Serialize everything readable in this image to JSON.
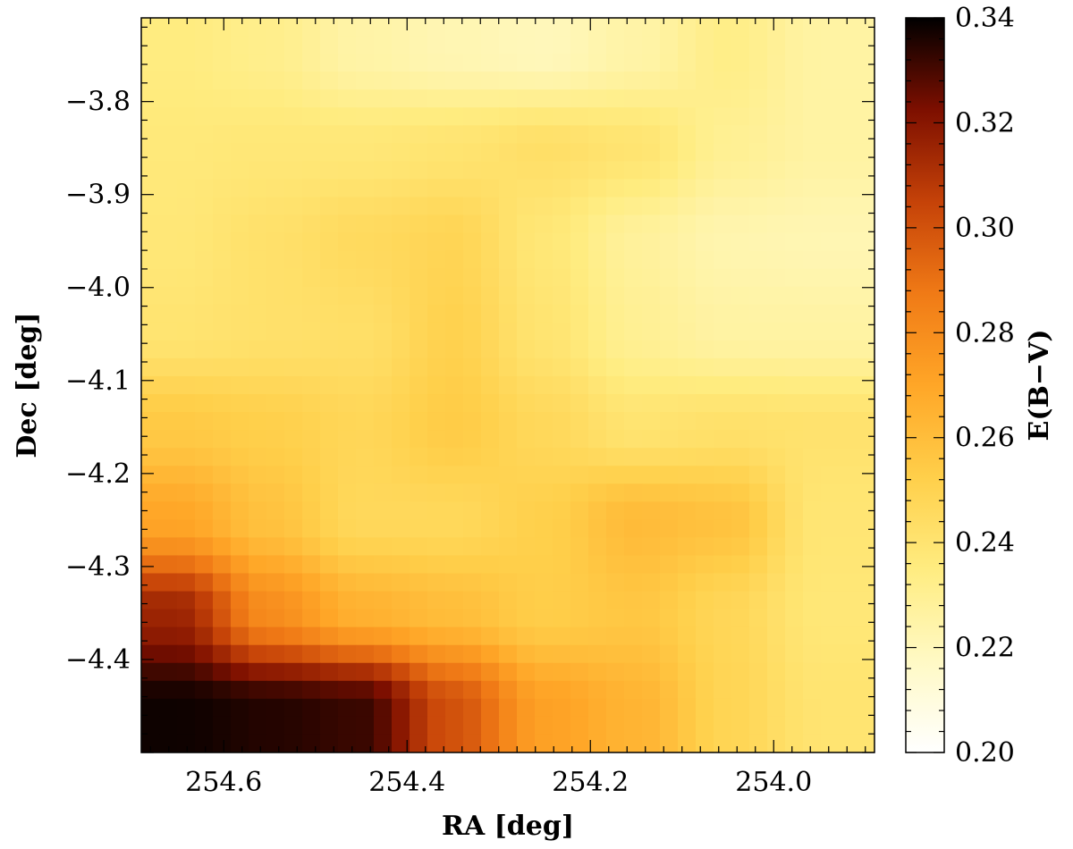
{
  "chart_data": {
    "type": "heatmap",
    "title": "",
    "xlabel": "RA [deg]",
    "ylabel": "Dec [deg]",
    "colorbar_label": "E(B−V)",
    "xlim": [
      254.69,
      253.89
    ],
    "ylim": [
      -4.5,
      -3.71
    ],
    "x_axis_reversed": true,
    "x_ticks": [
      254.6,
      254.4,
      254.2,
      254.0
    ],
    "x_tick_labels": [
      "254.6",
      "254.4",
      "254.2",
      "254.0"
    ],
    "y_ticks": [
      -3.8,
      -3.9,
      -4.0,
      -4.1,
      -4.2,
      -4.3,
      -4.4
    ],
    "y_tick_labels": [
      "−3.8",
      "−3.9",
      "−4.0",
      "−4.1",
      "−4.2",
      "−4.3",
      "−4.4"
    ],
    "colorbar_range": [
      0.2,
      0.34
    ],
    "colorbar_ticks": [
      0.2,
      0.22,
      0.24,
      0.26,
      0.28,
      0.3,
      0.32,
      0.34
    ],
    "colorbar_tick_labels": [
      "0.20",
      "0.22",
      "0.24",
      "0.26",
      "0.28",
      "0.30",
      "0.32",
      "0.34"
    ],
    "colormap": [
      "#ffffff",
      "#fff9c4",
      "#ffec80",
      "#ffcf4a",
      "#ffa627",
      "#f07a16",
      "#c54208",
      "#7d0f00",
      "#000000"
    ],
    "ra_grid": [
      254.65,
      254.55,
      254.45,
      254.35,
      254.25,
      254.15,
      254.05,
      253.95
    ],
    "dec_grid": [
      -3.75,
      -3.85,
      -3.95,
      -4.05,
      -4.15,
      -4.25,
      -4.35,
      -4.45
    ],
    "z": [
      [
        0.235,
        0.232,
        0.225,
        0.222,
        0.22,
        0.225,
        0.233,
        0.226
      ],
      [
        0.237,
        0.238,
        0.238,
        0.24,
        0.243,
        0.24,
        0.23,
        0.226
      ],
      [
        0.238,
        0.242,
        0.246,
        0.249,
        0.238,
        0.228,
        0.223,
        0.222
      ],
      [
        0.24,
        0.242,
        0.243,
        0.251,
        0.24,
        0.23,
        0.226,
        0.226
      ],
      [
        0.255,
        0.252,
        0.248,
        0.254,
        0.247,
        0.24,
        0.242,
        0.241
      ],
      [
        0.27,
        0.258,
        0.247,
        0.247,
        0.252,
        0.261,
        0.258,
        0.239
      ],
      [
        0.315,
        0.28,
        0.265,
        0.26,
        0.253,
        0.256,
        0.248,
        0.238
      ],
      [
        0.338,
        0.335,
        0.332,
        0.3,
        0.272,
        0.264,
        0.249,
        0.24
      ]
    ]
  }
}
